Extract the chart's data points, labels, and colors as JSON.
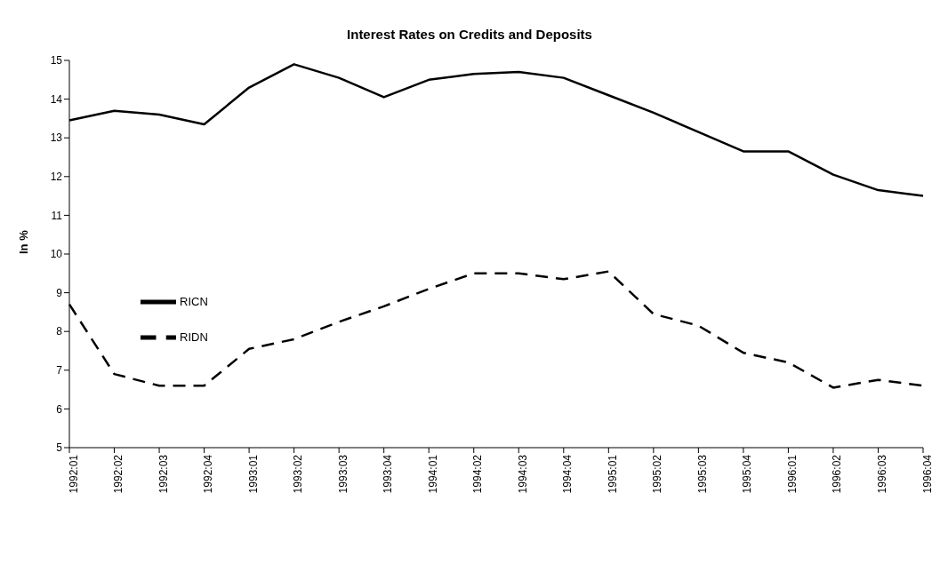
{
  "chart_data": {
    "type": "line",
    "title": "Interest Rates on Credits and Deposits",
    "ylabel": "In %",
    "categories": [
      "1992:01",
      "1992:02",
      "1992:03",
      "1992:04",
      "1993:01",
      "1993:02",
      "1993:03",
      "1993:04",
      "1994:01",
      "1994:02",
      "1994:03",
      "1994:04",
      "1995:01",
      "1995:02",
      "1995:03",
      "1995:04",
      "1996:01",
      "1996:02",
      "1996:03",
      "1996:04"
    ],
    "series": [
      {
        "name": "RICN",
        "color": "#000000",
        "line_style": "solid",
        "values": [
          13.45,
          13.7,
          13.6,
          13.35,
          14.3,
          14.9,
          14.55,
          14.05,
          14.5,
          14.65,
          14.7,
          14.55,
          14.1,
          13.65,
          13.15,
          12.65,
          12.65,
          12.05,
          11.65,
          11.5
        ]
      },
      {
        "name": "RIDN",
        "color": "#000000",
        "line_style": "dashed",
        "values": [
          8.7,
          6.9,
          6.6,
          6.6,
          7.55,
          7.8,
          8.25,
          8.65,
          9.1,
          9.5,
          9.5,
          9.35,
          9.55,
          8.45,
          8.15,
          7.45,
          7.2,
          6.55,
          6.75,
          6.6
        ]
      }
    ],
    "ylim": [
      5,
      15
    ],
    "yticks": [
      5,
      6,
      7,
      8,
      9,
      10,
      11,
      12,
      13,
      14,
      15
    ],
    "grid": false,
    "legend": "left",
    "marker": "none"
  }
}
